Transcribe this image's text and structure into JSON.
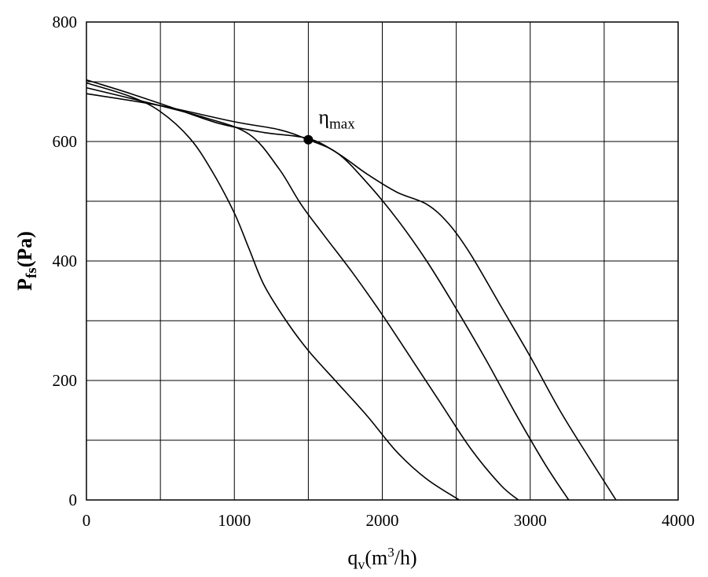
{
  "chart_data": {
    "type": "line",
    "title": "",
    "xlabel": {
      "main": "q",
      "sub": "v",
      "paren_open": "(m",
      "sup": "3",
      "paren_close": "/h)"
    },
    "ylabel": {
      "main": "P",
      "sub": "fs",
      "rest": "(Pa)"
    },
    "xlim": [
      0,
      4000
    ],
    "ylim": [
      0,
      800
    ],
    "x_ticks": [
      0,
      1000,
      2000,
      3000,
      4000
    ],
    "x_tick_labels": [
      "0",
      "1000",
      "2000",
      "3000",
      "4000"
    ],
    "y_ticks": [
      0,
      200,
      400,
      600,
      800
    ],
    "y_tick_labels": [
      "0",
      "200",
      "400",
      "600",
      "800"
    ],
    "x_grid": [
      0,
      500,
      1000,
      1500,
      2000,
      2500,
      3000,
      3500,
      4000
    ],
    "y_grid": [
      0,
      100,
      200,
      300,
      400,
      500,
      600,
      700,
      800
    ],
    "grid": true,
    "series": [
      {
        "points": [
          [
            0,
            698
          ],
          [
            300,
            675
          ],
          [
            500,
            650
          ],
          [
            700,
            605
          ],
          [
            850,
            550
          ],
          [
            1000,
            480
          ],
          [
            1100,
            420
          ],
          [
            1200,
            360
          ],
          [
            1350,
            300
          ],
          [
            1500,
            250
          ],
          [
            1700,
            195
          ],
          [
            1900,
            140
          ],
          [
            2100,
            80
          ],
          [
            2300,
            35
          ],
          [
            2520,
            0
          ]
        ]
      },
      {
        "points": [
          [
            0,
            690
          ],
          [
            400,
            666
          ],
          [
            800,
            640
          ],
          [
            1100,
            612
          ],
          [
            1300,
            555
          ],
          [
            1450,
            495
          ],
          [
            1600,
            445
          ],
          [
            1800,
            380
          ],
          [
            2000,
            310
          ],
          [
            2200,
            235
          ],
          [
            2400,
            160
          ],
          [
            2600,
            85
          ],
          [
            2800,
            25
          ],
          [
            2920,
            0
          ]
        ]
      },
      {
        "points": [
          [
            0,
            680
          ],
          [
            500,
            660
          ],
          [
            1000,
            633
          ],
          [
            1300,
            620
          ],
          [
            1500,
            603
          ],
          [
            1700,
            580
          ],
          [
            1900,
            530
          ],
          [
            2100,
            470
          ],
          [
            2300,
            400
          ],
          [
            2500,
            320
          ],
          [
            2700,
            235
          ],
          [
            2900,
            145
          ],
          [
            3100,
            60
          ],
          [
            3260,
            0
          ]
        ]
      },
      {
        "points": [
          [
            0,
            703
          ],
          [
            300,
            680
          ],
          [
            600,
            655
          ],
          [
            900,
            630
          ],
          [
            1200,
            615
          ],
          [
            1500,
            605
          ],
          [
            1700,
            580
          ],
          [
            1900,
            545
          ],
          [
            2100,
            515
          ],
          [
            2300,
            495
          ],
          [
            2450,
            462
          ],
          [
            2600,
            410
          ],
          [
            2800,
            325
          ],
          [
            3000,
            240
          ],
          [
            3200,
            150
          ],
          [
            3400,
            70
          ],
          [
            3580,
            0
          ]
        ]
      }
    ],
    "marker": {
      "x": 1500,
      "y": 603
    },
    "annotation": {
      "symbol": "η",
      "sub": "max",
      "x": 1500,
      "y": 603
    }
  }
}
